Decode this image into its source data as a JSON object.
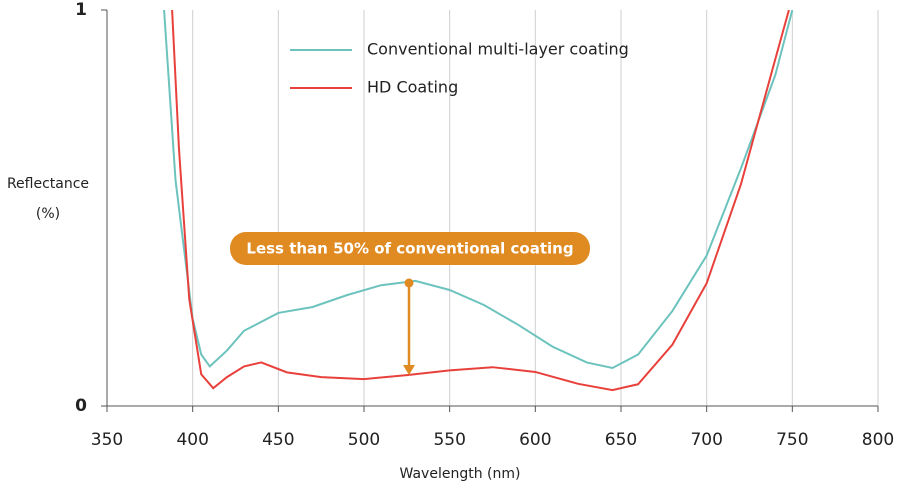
{
  "chart_data": {
    "type": "line",
    "xlabel": "Wavelength (nm)",
    "ylabel": [
      "Reflectance",
      "(%)"
    ],
    "xlim": [
      350,
      800
    ],
    "xticks": [
      350,
      400,
      450,
      500,
      550,
      600,
      650,
      700,
      750,
      800
    ],
    "ylim": [
      0,
      1
    ],
    "yticks": [
      0,
      1
    ],
    "grid": true,
    "annotation": "Less than 50% of conventional coating",
    "series": [
      {
        "name": "Conventional multi-layer coating",
        "color": "#6cc3bd",
        "x": [
          383,
          390,
          400,
          405,
          410,
          420,
          430,
          450,
          470,
          490,
          510,
          530,
          550,
          570,
          590,
          610,
          630,
          645,
          660,
          680,
          700,
          720,
          740,
          750
        ],
        "values": [
          1.02,
          0.57,
          0.22,
          0.13,
          0.1,
          0.14,
          0.19,
          0.235,
          0.25,
          0.28,
          0.305,
          0.316,
          0.293,
          0.255,
          0.205,
          0.15,
          0.11,
          0.096,
          0.13,
          0.24,
          0.38,
          0.6,
          0.835,
          1.0
        ]
      },
      {
        "name": "HD Coating",
        "color": "#e8413c",
        "x": [
          388,
          392,
          398,
          405,
          412,
          420,
          430,
          440,
          455,
          475,
          500,
          525,
          550,
          575,
          600,
          625,
          645,
          660,
          680,
          700,
          720,
          740,
          748
        ],
        "values": [
          1.0,
          0.65,
          0.27,
          0.08,
          0.045,
          0.073,
          0.1,
          0.11,
          0.085,
          0.073,
          0.068,
          0.078,
          0.09,
          0.098,
          0.086,
          0.056,
          0.04,
          0.055,
          0.155,
          0.31,
          0.56,
          0.875,
          1.0
        ]
      }
    ]
  }
}
